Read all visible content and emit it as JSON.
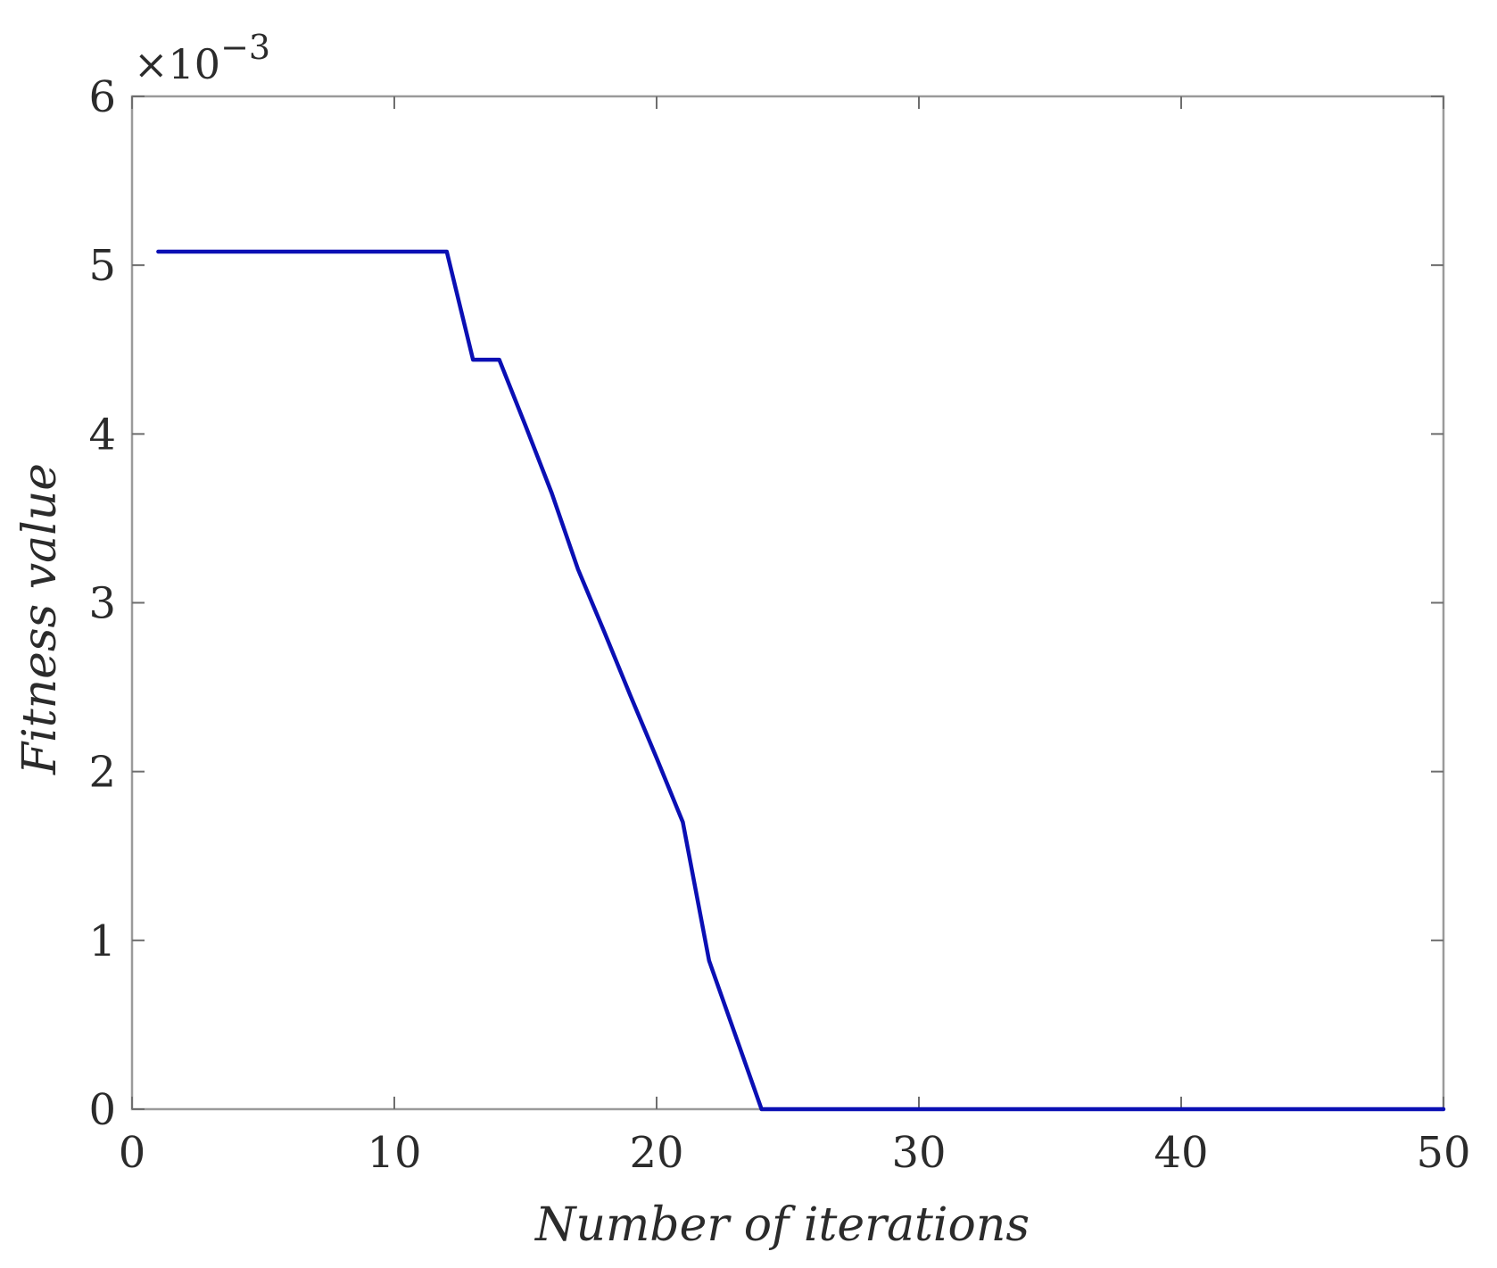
{
  "chart_data": {
    "type": "line",
    "xlabel": "Number of iterations",
    "ylabel": "Fitness value",
    "y_multiplier": {
      "base": "×10",
      "exponent": "−3"
    },
    "xlim": [
      0,
      50
    ],
    "ylim": [
      0,
      6
    ],
    "x_ticks": [
      0,
      10,
      20,
      30,
      40,
      50
    ],
    "y_ticks": [
      0,
      1,
      2,
      3,
      4,
      5,
      6
    ],
    "x_tick_labels": [
      "0",
      "10",
      "20",
      "30",
      "40",
      "50"
    ],
    "y_tick_labels": [
      "0",
      "1",
      "2",
      "3",
      "4",
      "5",
      "6"
    ],
    "grid": false,
    "series": [
      {
        "color": "#0a0fb4",
        "x": [
          1,
          2,
          3,
          4,
          5,
          6,
          7,
          8,
          9,
          10,
          11,
          12,
          13,
          14,
          15,
          16,
          17,
          18,
          19,
          20,
          21,
          22,
          23,
          24,
          25,
          26,
          27,
          28,
          29,
          30,
          31,
          32,
          33,
          34,
          35,
          36,
          37,
          38,
          39,
          40,
          41,
          42,
          43,
          44,
          45,
          46,
          47,
          48,
          49,
          50
        ],
        "y": [
          5.08,
          5.08,
          5.08,
          5.08,
          5.08,
          5.08,
          5.08,
          5.08,
          5.08,
          5.08,
          5.08,
          5.08,
          4.44,
          4.44,
          4.05,
          3.65,
          3.2,
          2.83,
          2.45,
          2.08,
          1.7,
          0.88,
          0.44,
          0.0,
          0.0,
          0.0,
          0.0,
          0.0,
          0.0,
          0.0,
          0.0,
          0.0,
          0.0,
          0.0,
          0.0,
          0.0,
          0.0,
          0.0,
          0.0,
          0.0,
          0.0,
          0.0,
          0.0,
          0.0,
          0.0,
          0.0,
          0.0,
          0.0,
          0.0,
          0.0
        ]
      }
    ]
  }
}
